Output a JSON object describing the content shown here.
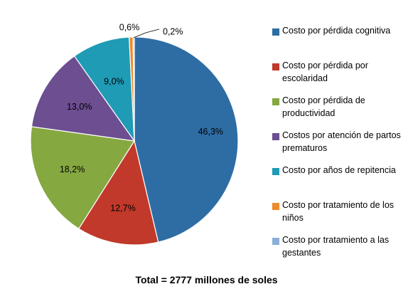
{
  "chart_data": {
    "type": "pie",
    "categories": [
      "Costo por pérdida cognitiva",
      "Costo por pérdida por escolaridad",
      "Costo por pérdida de productividad",
      "Costos por atención de partos prematuros",
      "Costo por años de repitencia",
      "Costo por tratamiento  de los niños",
      "Costo por tratamiento  a las gestantes"
    ],
    "values": [
      46.3,
      12.7,
      18.2,
      13.0,
      9.0,
      0.6,
      0.2
    ],
    "labels": [
      "46,3%",
      "12,7%",
      "18,2%",
      "13,0%",
      "9,0%",
      "0,6%",
      "0,2%"
    ],
    "colors": [
      "#2E6DA4",
      "#C0392B",
      "#86A840",
      "#6C4E91",
      "#1F9BB5",
      "#EE8A2E",
      "#8BAFD8"
    ],
    "legend_position": "right",
    "title": "",
    "caption": "Total = 2777 millones de soles"
  }
}
